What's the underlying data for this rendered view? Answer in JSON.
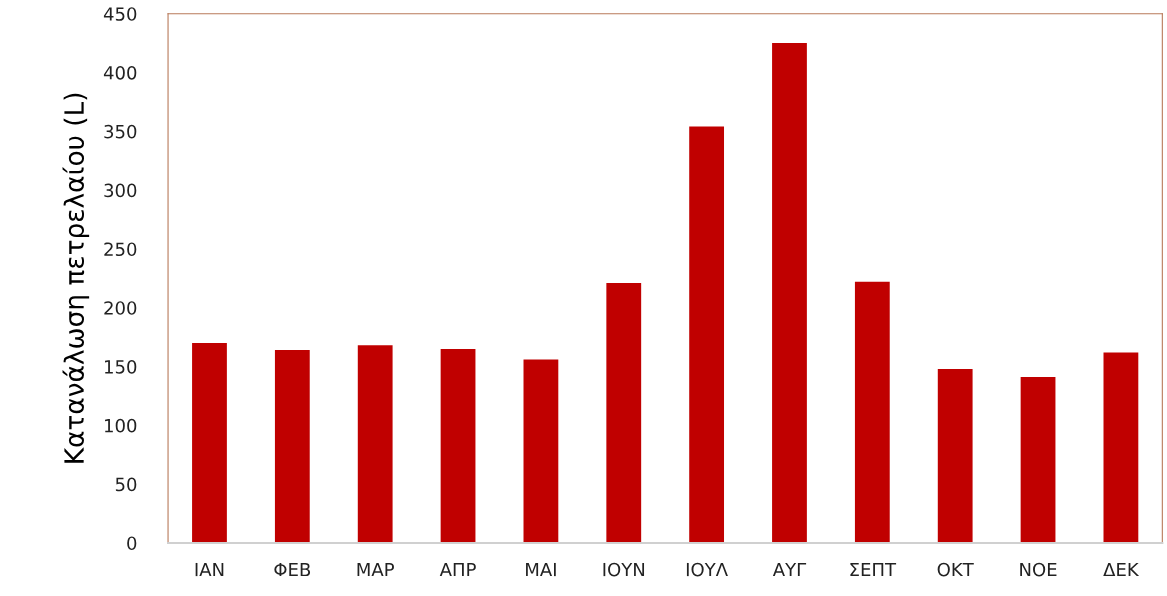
{
  "chart_data": {
    "type": "bar",
    "ylabel": "Κατανάλωση πετρελαίου (L)",
    "categories": [
      "ΙΑΝ",
      "ΦΕΒ",
      "ΜΑΡ",
      "ΑΠΡ",
      "ΜΑΙ",
      "ΙΟΥΝ",
      "ΙΟΥΛ",
      "ΑΥΓ",
      "ΣΕΠΤ",
      "ΟΚΤ",
      "ΝΟΕ",
      "ΔΕΚ"
    ],
    "values": [
      170,
      164,
      168,
      165,
      156,
      221,
      354,
      425,
      222,
      148,
      141,
      162
    ],
    "color": "#c00000",
    "ylim": [
      0,
      450
    ],
    "yticks": [
      0,
      50,
      100,
      150,
      200,
      250,
      300,
      350,
      400,
      450
    ],
    "grid": false
  }
}
